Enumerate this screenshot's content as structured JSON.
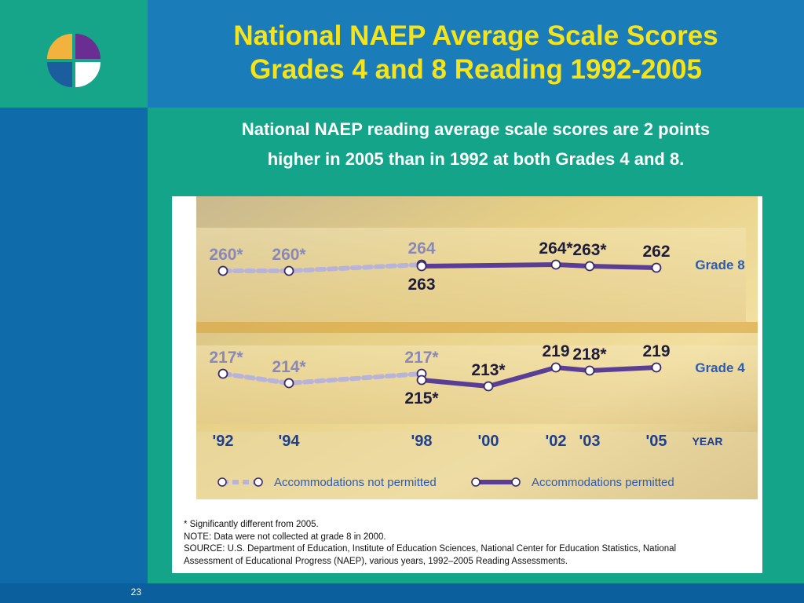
{
  "slide": {
    "title_line1": "National NAEP Average Scale Scores",
    "title_line2": "Grades 4 and 8 Reading 1992-2005",
    "subtitle_line1": "National NAEP reading average scale scores are 2 points",
    "subtitle_line2": "higher in 2005 than in 1992 at both Grades 4 and 8.",
    "page_number": "23",
    "colors": {
      "title": "#f5e31b",
      "band": "#14a48a",
      "header": "#1a7cb8"
    }
  },
  "chart_data": {
    "type": "line",
    "title": "",
    "xlabel": "YEAR",
    "ylabel": "",
    "categories": [
      "'92",
      "'94",
      "'98",
      "'00",
      "'02",
      "'03",
      "'05"
    ],
    "x": [
      1992,
      1994,
      1998,
      2000,
      2002,
      2003,
      2005
    ],
    "series": [
      {
        "name": "Grade 8",
        "segment": "Accommodations not permitted",
        "x": [
          1992,
          1994,
          1998
        ],
        "values": [
          260,
          260,
          264
        ],
        "labels": [
          "260*",
          "260*",
          "264"
        ]
      },
      {
        "name": "Grade 8",
        "segment": "Accommodations permitted",
        "x": [
          1998,
          2002,
          2003,
          2005
        ],
        "values": [
          263,
          264,
          263,
          262
        ],
        "labels": [
          "263",
          "264*",
          "263*",
          "262"
        ]
      },
      {
        "name": "Grade 4",
        "segment": "Accommodations not permitted",
        "x": [
          1992,
          1994,
          1998
        ],
        "values": [
          217,
          214,
          217
        ],
        "labels": [
          "217*",
          "214*",
          "217*"
        ]
      },
      {
        "name": "Grade 4",
        "segment": "Accommodations permitted",
        "x": [
          1998,
          2000,
          2002,
          2003,
          2005
        ],
        "values": [
          215,
          213,
          219,
          218,
          219
        ],
        "labels": [
          "215*",
          "213*",
          "219",
          "218*",
          "219"
        ]
      }
    ],
    "series_labels": [
      "Grade 8",
      "Grade 4"
    ],
    "legend": [
      {
        "label": "Accommodations not permitted",
        "style": "dashed",
        "color": "#b8b3d9"
      },
      {
        "label": "Accommodations permitted",
        "style": "solid",
        "color": "#5a3d95"
      }
    ],
    "legend_position": "bottom",
    "notes": [
      "* Significantly different from 2005.",
      "NOTE: Data were not collected at grade 8 in 2000.",
      "SOURCE: U.S. Department of Education, Institute of Education Sciences, National Center for Education Statistics, National",
      "Assessment of Educational Progress (NAEP), various years, 1992–2005 Reading Assessments."
    ]
  }
}
